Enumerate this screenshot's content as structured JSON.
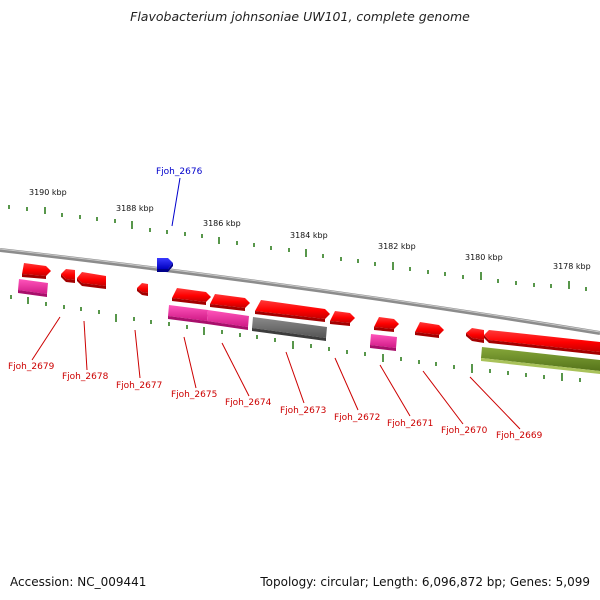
{
  "title": "Flavobacterium johnsoniae UW101, complete genome",
  "footer": {
    "accession": "Accession: NC_009441",
    "summary": "Topology: circular; Length: 6,096,872 bp; Genes: 5,099"
  },
  "colors": {
    "backbone": "#8c8c8c",
    "tick": "#2e7d1e",
    "forward_gene": "#ff1a1a",
    "reverse_gene_red": "#ff1a1a",
    "pink_gene": "#ff33aa",
    "gray_gene": "#707070",
    "olive_gene": "#6b8e23",
    "highlight_gene": "#1a1aff",
    "label_red": "#cc0000",
    "label_blue": "#0000cc"
  },
  "scale_labels": [
    "3190 kbp",
    "3188 kbp",
    "3186 kbp",
    "3184 kbp",
    "3182 kbp",
    "3180 kbp",
    "3178 kbp"
  ],
  "labels": {
    "highlight": "Fjoh_2676",
    "genes": [
      "Fjoh_2679",
      "Fjoh_2678",
      "Fjoh_2677",
      "Fjoh_2675",
      "Fjoh_2674",
      "Fjoh_2673",
      "Fjoh_2672",
      "Fjoh_2671",
      "Fjoh_2670",
      "Fjoh_2669"
    ]
  }
}
